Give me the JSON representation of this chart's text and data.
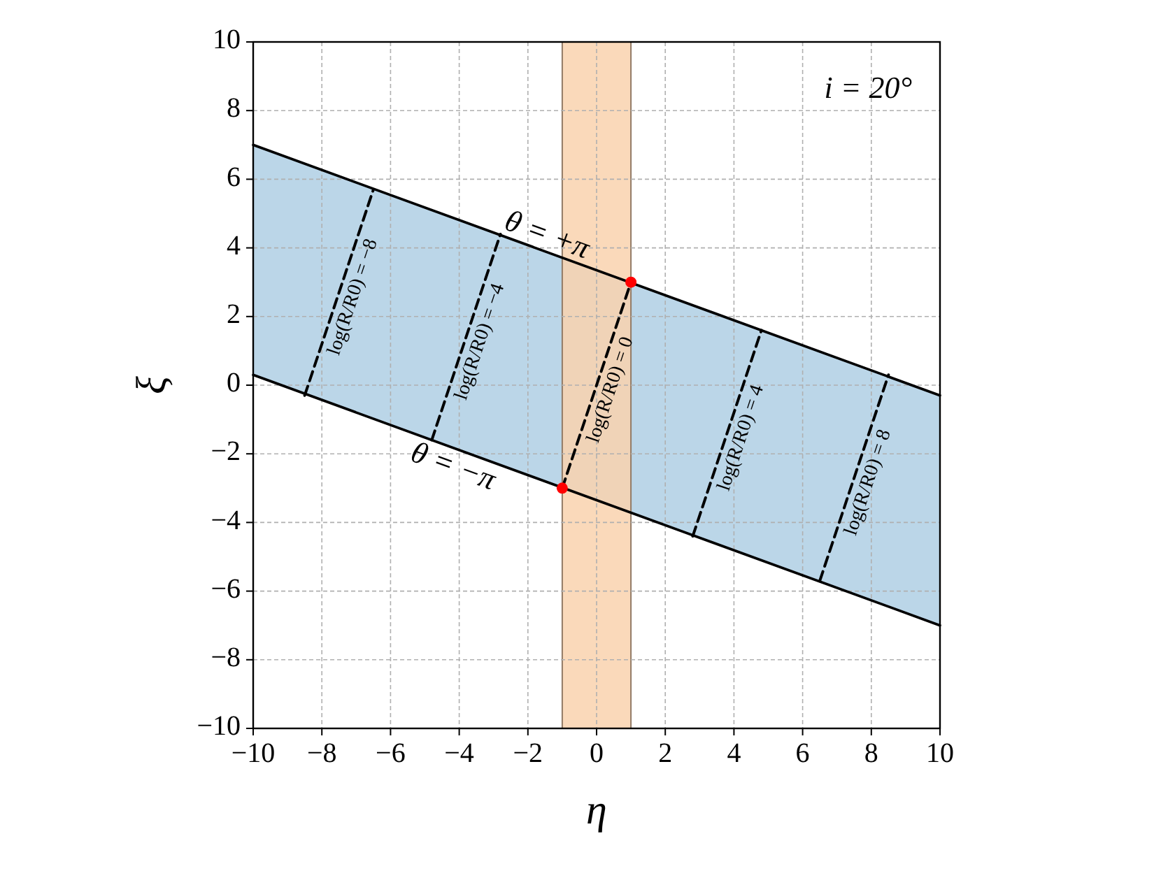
{
  "chart_data": {
    "type": "line",
    "xlabel": "η",
    "ylabel": "ξ",
    "xlim": [
      -10,
      10
    ],
    "ylim": [
      -10,
      10
    ],
    "xticks": [
      -10,
      -8,
      -6,
      -4,
      -2,
      0,
      2,
      4,
      6,
      8,
      10
    ],
    "yticks": [
      -10,
      -8,
      -6,
      -4,
      -2,
      0,
      2,
      4,
      6,
      8,
      10
    ],
    "grid": true,
    "annotations": [
      "i = 20°"
    ],
    "bands": [
      {
        "axis": "x",
        "from": -1,
        "to": 1,
        "color": "#f9d2ae"
      }
    ],
    "series": [
      {
        "name": "θ = +π",
        "color": "#000000",
        "x": [
          -10,
          10
        ],
        "values": [
          7,
          -0.3
        ],
        "lower": [
          0.3,
          -7
        ],
        "upper": [
          7,
          -0.3
        ]
      },
      {
        "name": "θ = −π",
        "color": "#000000",
        "x": [
          -10,
          10
        ],
        "values": [
          0.3,
          -7
        ]
      },
      {
        "name": "log(R/R0) = −8",
        "color": "#000000",
        "line_style": "dashed",
        "x": [
          -8.5,
          -6.5
        ],
        "values": [
          -0.3,
          5.7
        ]
      },
      {
        "name": "log(R/R0) = −4",
        "color": "#000000",
        "line_style": "dashed",
        "x": [
          -4.8,
          -2.8
        ],
        "values": [
          -1.6,
          4.4
        ]
      },
      {
        "name": "log(R/R0) = 0",
        "color": "#000000",
        "line_style": "dashed",
        "x": [
          -1,
          1
        ],
        "values": [
          -3,
          3
        ]
      },
      {
        "name": "log(R/R0) = 4",
        "color": "#000000",
        "line_style": "dashed",
        "x": [
          2.8,
          4.8
        ],
        "values": [
          -4.4,
          1.6
        ]
      },
      {
        "name": "log(R/R0) = 8",
        "color": "#000000",
        "line_style": "dashed",
        "x": [
          6.5,
          8.5
        ],
        "values": [
          -5.7,
          0.3
        ]
      },
      {
        "type": "scatter",
        "color": "#ff0000",
        "x": [
          -1,
          1
        ],
        "values": [
          -3,
          3
        ]
      }
    ]
  }
}
